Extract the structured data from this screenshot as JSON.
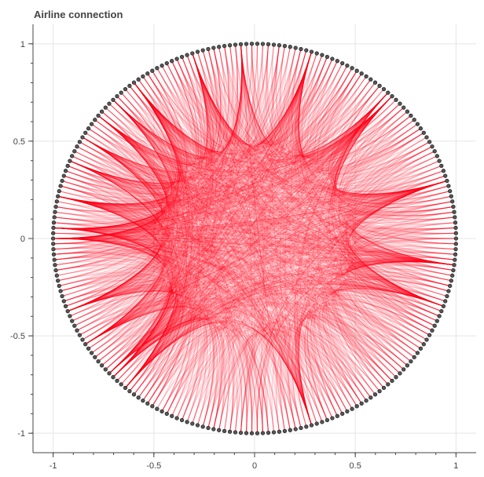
{
  "chart_data": {
    "type": "graph",
    "title": "Airline connection",
    "xlabel": "",
    "ylabel": "",
    "xlim": [
      -1.1,
      1.1
    ],
    "ylim": [
      -1.1,
      1.1
    ],
    "x_ticks": [
      -1,
      -0.5,
      0,
      0.5,
      1
    ],
    "y_ticks": [
      -1,
      -0.5,
      0,
      0.5,
      1
    ],
    "x_tick_labels": [
      "-1",
      "-0.5",
      "0",
      "0.5",
      "1"
    ],
    "y_tick_labels": [
      "-1",
      "-0.5",
      "0",
      "0.5",
      "1"
    ],
    "grid": true,
    "layout": "circular",
    "node_count": 230,
    "node_radius_data": 1.0,
    "node_color": "#555555",
    "node_outline_color": "#222222",
    "edge_color": "#ff0022",
    "edge_alpha": 0.1,
    "edge_style": "curved-through-center",
    "grid_color": "#e5e5e5",
    "axis_color": "#444444"
  }
}
